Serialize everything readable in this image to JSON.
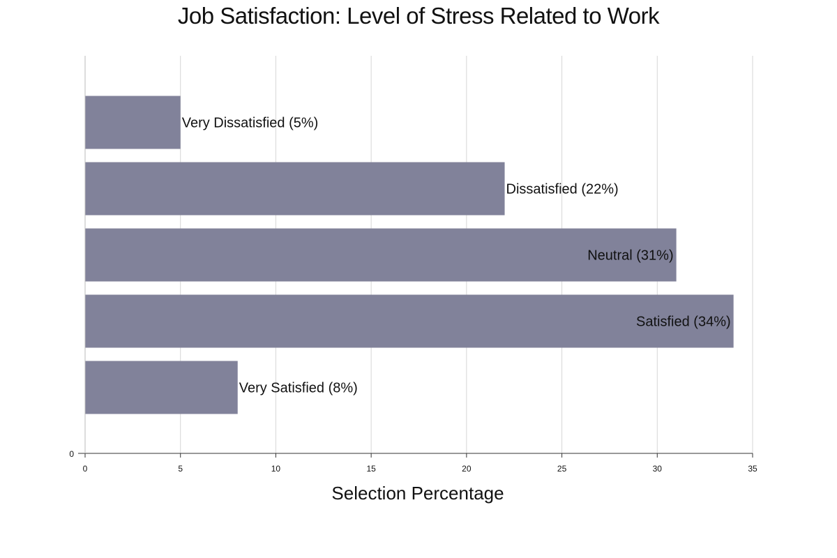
{
  "chart_data": {
    "type": "bar",
    "orientation": "horizontal",
    "title": "Job Satisfaction: Level of Stress Related to Work",
    "xlabel": "Selection Percentage",
    "ylabel": "",
    "xlim": [
      0,
      35
    ],
    "x_ticks": [
      0,
      5,
      10,
      15,
      20,
      25,
      30,
      35
    ],
    "y_tick_labels": [
      "0"
    ],
    "grid": true,
    "legend": "none",
    "bar_color": "#81829a",
    "categories": [
      "Very Dissatisfied",
      "Dissatisfied",
      "Neutral",
      "Satisfied",
      "Very Satisfied"
    ],
    "values": [
      5,
      22,
      31,
      34,
      8
    ],
    "data_labels": [
      "Very Dissatisfied (5%)",
      "Dissatisfied (22%)",
      "Neutral (31%)",
      "Satisfied (34%)",
      "Very Satisfied (8%)"
    ]
  }
}
